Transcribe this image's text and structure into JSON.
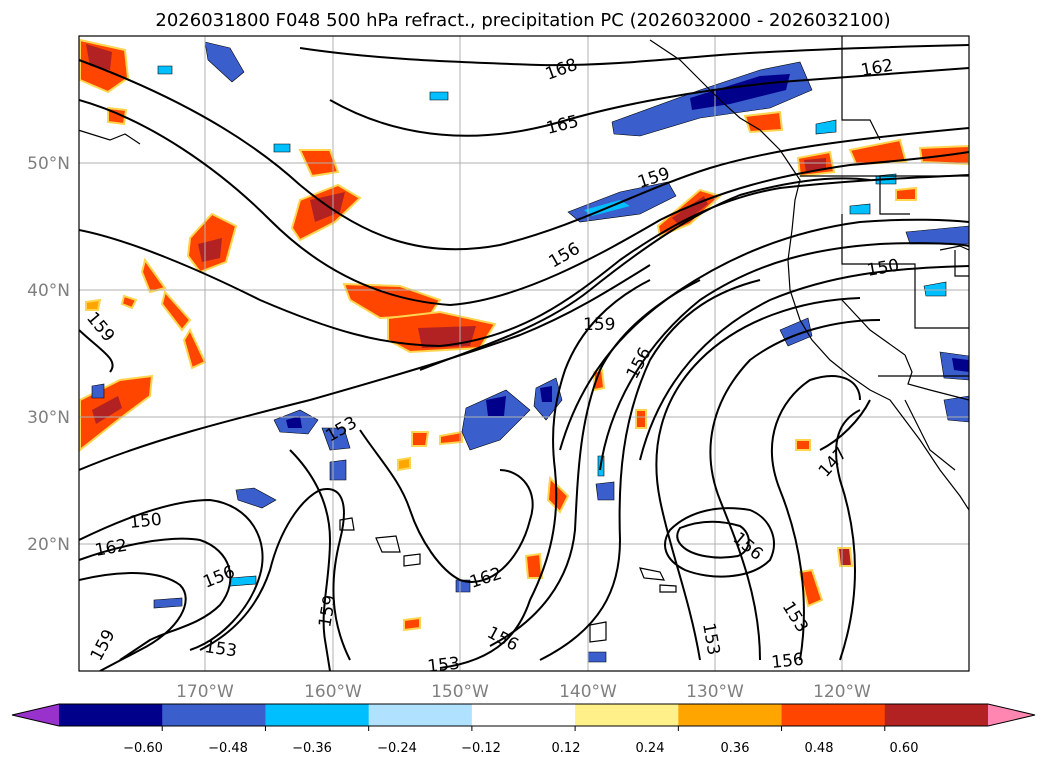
{
  "title": "2026031800 F048 500 hPa refract., precipitation PC (2026032000 - 2026032100)",
  "lat_ticks": [
    "50°N",
    "40°N",
    "30°N",
    "20°N"
  ],
  "lon_ticks": [
    "170°W",
    "160°W",
    "150°W",
    "140°W",
    "130°W",
    "120°W"
  ],
  "map_extent": {
    "lon": [
      -180,
      -110
    ],
    "lat": [
      10,
      60
    ]
  },
  "colorbar": {
    "tick_labels": [
      "−0.60",
      "−0.48",
      "−0.36",
      "−0.24",
      "−0.12",
      "0.12",
      "0.24",
      "0.36",
      "0.48",
      "0.60"
    ],
    "colors": [
      "#9932cc",
      "#00008b",
      "#3a5fcd",
      "#00bfff",
      "#b0e2ff",
      "#ffffff",
      "#fff08a",
      "#ffa500",
      "#ff4500",
      "#b22222",
      "#ff86b0"
    ],
    "extend": "both"
  },
  "contour_labels": [
    {
      "text": "168"
    },
    {
      "text": "165"
    },
    {
      "text": "162"
    },
    {
      "text": "159"
    },
    {
      "text": "156"
    },
    {
      "text": "159"
    },
    {
      "text": "156"
    },
    {
      "text": "150"
    },
    {
      "text": "159"
    },
    {
      "text": "153"
    },
    {
      "text": "150"
    },
    {
      "text": "162"
    },
    {
      "text": "156"
    },
    {
      "text": "153"
    },
    {
      "text": "159"
    },
    {
      "text": "159"
    },
    {
      "text": "162"
    },
    {
      "text": "156"
    },
    {
      "text": "153"
    },
    {
      "text": "153"
    },
    {
      "text": "156"
    },
    {
      "text": "153"
    },
    {
      "text": "156"
    },
    {
      "text": "147"
    }
  ]
}
